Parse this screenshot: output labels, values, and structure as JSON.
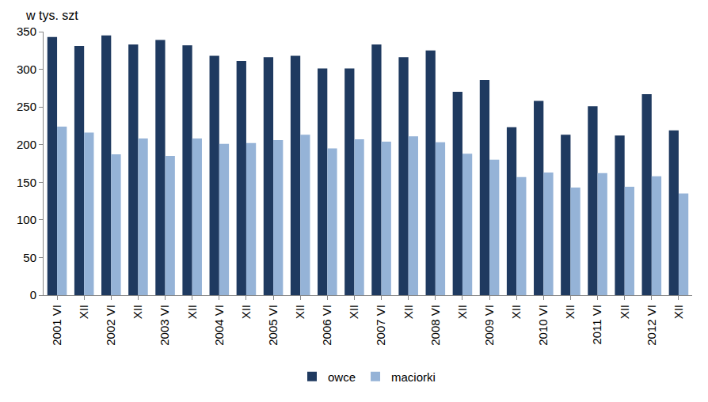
{
  "chart_data": {
    "type": "bar",
    "y_label": "w tys. szt",
    "categories": [
      "2001 VI",
      "XII",
      "2002 VI",
      "XII",
      "2003 VI",
      "XII",
      "2004 VI",
      "XII",
      "2005 VI",
      "XII",
      "2006 VI",
      "XII",
      "2007 VI",
      "XII",
      "2008 VI",
      "XII",
      "2009 VI",
      "XII",
      "2010 VI",
      "XII",
      "2011 VI",
      "XII",
      "2012 VI",
      "XII"
    ],
    "series": [
      {
        "name": "owce",
        "color": "#1f3a60",
        "values": [
          343,
          331,
          345,
          333,
          339,
          332,
          318,
          311,
          316,
          318,
          301,
          301,
          333,
          316,
          325,
          270,
          286,
          223,
          258,
          213,
          251,
          212,
          267,
          219
        ]
      },
      {
        "name": "maciorki",
        "color": "#95b3d7",
        "values": [
          224,
          216,
          187,
          208,
          185,
          208,
          201,
          202,
          206,
          213,
          195,
          207,
          204,
          211,
          203,
          188,
          180,
          157,
          163,
          143,
          162,
          144,
          158,
          135
        ]
      }
    ],
    "ylim": [
      0,
      350
    ],
    "yticks": [
      0,
      50,
      100,
      150,
      200,
      250,
      300,
      350
    ],
    "grid": false,
    "legend": "bottom"
  }
}
